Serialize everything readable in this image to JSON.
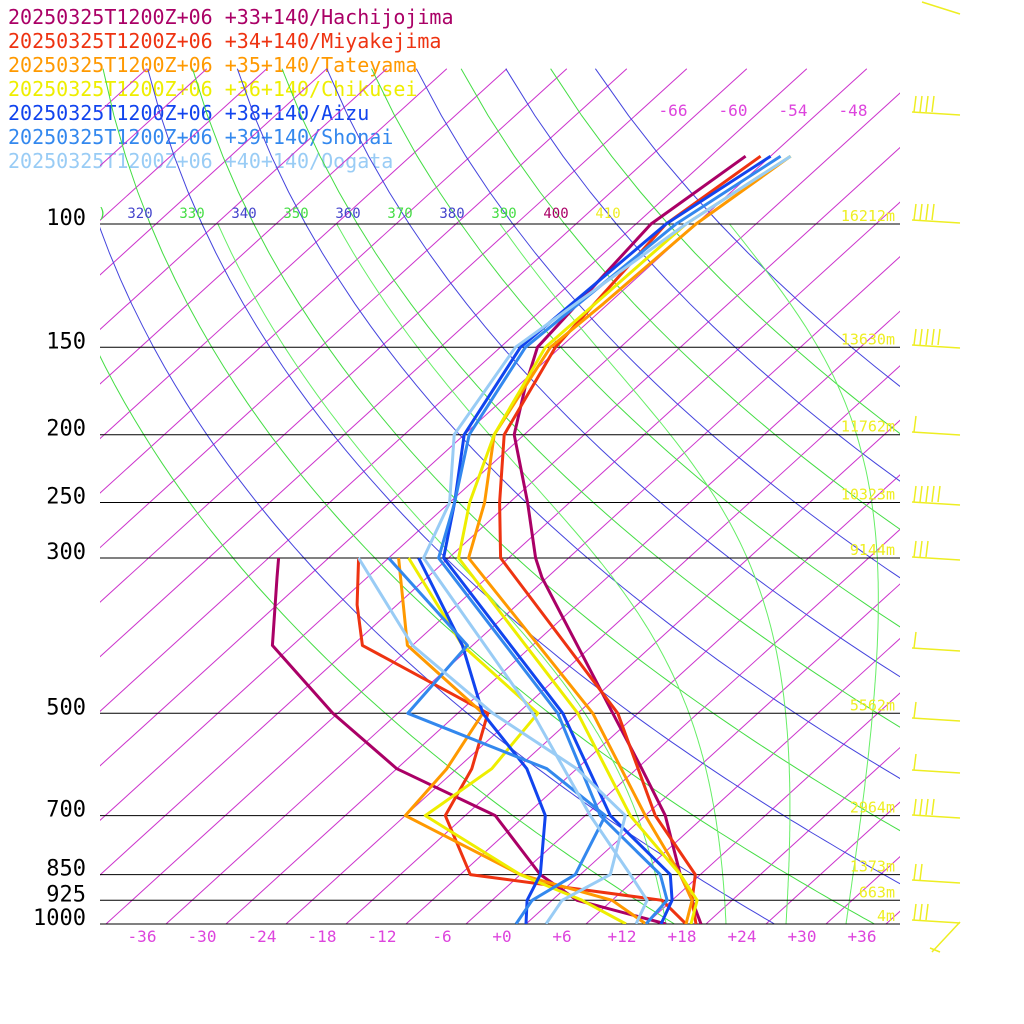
{
  "legend": [
    {
      "label": "20250325T1200Z+06 +33+140/Hachijojima",
      "color": "#aa0066"
    },
    {
      "label": "20250325T1200Z+06 +34+140/Miyakejima",
      "color": "#ee3311"
    },
    {
      "label": "20250325T1200Z+06 +35+140/Tateyama",
      "color": "#ff9900"
    },
    {
      "label": "20250325T1200Z+06 +36+140/Chikusei",
      "color": "#eeee00"
    },
    {
      "label": "20250325T1200Z+06 +38+140/Aizu",
      "color": "#1144ee"
    },
    {
      "label": "20250325T1200Z+06 +39+140/Shonai",
      "color": "#3388ee"
    },
    {
      "label": "20250325T1200Z+06 +40+140/Oogata",
      "color": "#99ccf5"
    }
  ],
  "chart_data": {
    "type": "line",
    "pressure_levels_hPa": [
      100,
      150,
      200,
      250,
      300,
      500,
      700,
      850,
      925,
      1000
    ],
    "pressure_labels": [
      "100",
      "150",
      "200",
      "250",
      "300",
      "500",
      "700",
      "850",
      "925",
      "1000"
    ],
    "temperature_ticks": [
      "-36",
      "-30",
      "-24",
      "-18",
      "-12",
      "-6",
      "+0",
      "+6",
      "+12",
      "+18",
      "+24",
      "+30",
      "+36"
    ],
    "temperature_tick_values": [
      -36,
      -30,
      -24,
      -18,
      -12,
      -6,
      0,
      6,
      12,
      18,
      24,
      30,
      36
    ],
    "xlim": [
      -40,
      40
    ],
    "ylim_hPa": [
      1000,
      100
    ],
    "height_labels": [
      {
        "pressure": 100,
        "label": "16212m"
      },
      {
        "pressure": 150,
        "label": "13630m"
      },
      {
        "pressure": 200,
        "label": "11762m"
      },
      {
        "pressure": 250,
        "label": "10323m"
      },
      {
        "pressure": 300,
        "label": "9144m"
      },
      {
        "pressure": 500,
        "label": "5562m"
      },
      {
        "pressure": 700,
        "label": "2964m"
      },
      {
        "pressure": 850,
        "label": "1373m"
      },
      {
        "pressure": 925,
        "label": "663m"
      },
      {
        "pressure": 1000,
        "label": "4m"
      }
    ],
    "skew_isotherm_labels": [
      "-66",
      "-60",
      "-54",
      "-48"
    ],
    "theta_labels": [
      {
        "label": "320",
        "color": "#4444cc"
      },
      {
        "label": "330",
        "color": "#44dd44"
      },
      {
        "label": "340",
        "color": "#4444cc"
      },
      {
        "label": "350",
        "color": "#44dd44"
      },
      {
        "label": "360",
        "color": "#4444cc"
      },
      {
        "label": "370",
        "color": "#44dd44"
      },
      {
        "label": "380",
        "color": "#4444cc"
      },
      {
        "label": "390",
        "color": "#44dd44"
      },
      {
        "label": "400",
        "color": "#aa0066"
      },
      {
        "label": "410",
        "color": "#eeee22"
      }
    ],
    "series": [
      {
        "name": "20250325T1200Z+06 +33+140/Hachijojima",
        "color": "#aa0066",
        "temperature": [
          [
            80,
            -60.5
          ],
          [
            100,
            -62.5
          ],
          [
            150,
            -60.3
          ],
          [
            170,
            -57.3
          ],
          [
            200,
            -53.0
          ],
          [
            250,
            -44.2
          ],
          [
            300,
            -37.3
          ],
          [
            320,
            -34.5
          ],
          [
            500,
            -12.5
          ],
          [
            600,
            -3.5
          ],
          [
            700,
            4.0
          ],
          [
            850,
            12.0
          ],
          [
            925,
            16.0
          ],
          [
            1000,
            19.5
          ]
        ],
        "dewpoint": [
          [
            300,
            -63.0
          ],
          [
            320,
            -61.0
          ],
          [
            400,
            -54.0
          ],
          [
            500,
            -40.5
          ],
          [
            600,
            -28.0
          ],
          [
            700,
            -13.0
          ],
          [
            850,
            -2.0
          ],
          [
            925,
            4.5
          ],
          [
            1000,
            16.0
          ]
        ]
      },
      {
        "name": "20250325T1200Z+06 +34+140/Miyakejima",
        "color": "#ee3311",
        "temperature": [
          [
            80,
            -59.0
          ],
          [
            100,
            -61.0
          ],
          [
            150,
            -58.5
          ],
          [
            200,
            -54.0
          ],
          [
            250,
            -47.0
          ],
          [
            300,
            -40.8
          ],
          [
            500,
            -12.0
          ],
          [
            700,
            3.0
          ],
          [
            850,
            13.5
          ],
          [
            925,
            16.0
          ],
          [
            1000,
            19.0
          ]
        ],
        "dewpoint": [
          [
            300,
            -55.0
          ],
          [
            350,
            -50.0
          ],
          [
            400,
            -45.0
          ],
          [
            500,
            -25.0
          ],
          [
            600,
            -20.5
          ],
          [
            700,
            -18.0
          ],
          [
            850,
            -9.0
          ],
          [
            925,
            13.0
          ],
          [
            1000,
            18.0
          ]
        ]
      },
      {
        "name": "20250325T1200Z+06 +35+140/Tateyama",
        "color": "#ff9900",
        "temperature": [
          [
            80,
            -56.0
          ],
          [
            100,
            -58.0
          ],
          [
            130,
            -58.5
          ],
          [
            150,
            -59.0
          ],
          [
            200,
            -55.0
          ],
          [
            250,
            -48.5
          ],
          [
            300,
            -44.0
          ],
          [
            500,
            -14.5
          ],
          [
            700,
            2.0
          ],
          [
            850,
            12.0
          ],
          [
            925,
            16.0
          ],
          [
            1000,
            18.0
          ]
        ],
        "dewpoint": [
          [
            300,
            -51.0
          ],
          [
            400,
            -40.5
          ],
          [
            500,
            -25.5
          ],
          [
            600,
            -23.0
          ],
          [
            700,
            -22.0
          ],
          [
            850,
            -4.0
          ],
          [
            925,
            8.0
          ],
          [
            1000,
            14.0
          ]
        ]
      },
      {
        "name": "20250325T1200Z+06 +36+140/Chikusei",
        "color": "#eeee00",
        "temperature": [
          [
            80,
            -56.0
          ],
          [
            100,
            -59.0
          ],
          [
            150,
            -59.5
          ],
          [
            200,
            -55.0
          ],
          [
            250,
            -50.0
          ],
          [
            300,
            -45.0
          ],
          [
            500,
            -16.0
          ],
          [
            700,
            0.5
          ],
          [
            850,
            12.0
          ],
          [
            925,
            16.5
          ],
          [
            1000,
            18.5
          ]
        ],
        "dewpoint": [
          [
            300,
            -50.0
          ],
          [
            400,
            -35.0
          ],
          [
            500,
            -20.0
          ],
          [
            600,
            -18.5
          ],
          [
            700,
            -20.0
          ],
          [
            850,
            -4.0
          ],
          [
            925,
            5.0
          ],
          [
            1000,
            12.0
          ]
        ]
      },
      {
        "name": "20250325T1200Z+06 +38+140/Aizu",
        "color": "#1144ee",
        "temperature": [
          [
            80,
            -58.0
          ],
          [
            100,
            -61.0
          ],
          [
            150,
            -62.0
          ],
          [
            200,
            -58.0
          ],
          [
            250,
            -51.5
          ],
          [
            300,
            -46.5
          ],
          [
            500,
            -17.5
          ],
          [
            700,
            -1.5
          ],
          [
            850,
            11.0
          ],
          [
            925,
            14.0
          ],
          [
            1000,
            15.5
          ]
        ],
        "dewpoint": [
          [
            300,
            -49.0
          ],
          [
            400,
            -35.0
          ],
          [
            500,
            -25.5
          ],
          [
            600,
            -15.0
          ],
          [
            700,
            -8.0
          ],
          [
            850,
            -2.0
          ],
          [
            925,
            -0.5
          ],
          [
            1000,
            2.0
          ]
        ]
      },
      {
        "name": "20250325T1200Z+06 +39+140/Shonai",
        "color": "#3388ee",
        "temperature": [
          [
            80,
            -57.0
          ],
          [
            100,
            -60.0
          ],
          [
            150,
            -61.5
          ],
          [
            200,
            -57.5
          ],
          [
            250,
            -51.5
          ],
          [
            300,
            -47.0
          ],
          [
            500,
            -18.0
          ],
          [
            700,
            -2.5
          ],
          [
            850,
            10.0
          ],
          [
            925,
            13.5
          ],
          [
            1000,
            14.0
          ]
        ],
        "dewpoint": [
          [
            300,
            -52.0
          ],
          [
            400,
            -34.5
          ],
          [
            500,
            -33.0
          ],
          [
            600,
            -13.0
          ],
          [
            700,
            -2.0
          ],
          [
            850,
            1.5
          ],
          [
            925,
            0.0
          ],
          [
            1000,
            1.0
          ]
        ]
      },
      {
        "name": "20250325T1200Z+06 +40+140/Oogata",
        "color": "#99ccf5",
        "temperature": [
          [
            80,
            -56.0
          ],
          [
            100,
            -59.0
          ],
          [
            150,
            -62.5
          ],
          [
            200,
            -59.0
          ],
          [
            250,
            -52.0
          ],
          [
            300,
            -48.5
          ],
          [
            500,
            -20.5
          ],
          [
            700,
            -3.5
          ],
          [
            850,
            7.0
          ],
          [
            925,
            11.5
          ],
          [
            1000,
            13.0
          ]
        ],
        "dewpoint": [
          [
            300,
            -55.0
          ],
          [
            400,
            -40.0
          ],
          [
            500,
            -24.5
          ],
          [
            600,
            -10.0
          ],
          [
            700,
            0.0
          ],
          [
            850,
            5.0
          ],
          [
            925,
            3.0
          ],
          [
            1000,
            4.0
          ]
        ]
      }
    ],
    "wind_barb_color": "#eeee22",
    "grid": true
  }
}
